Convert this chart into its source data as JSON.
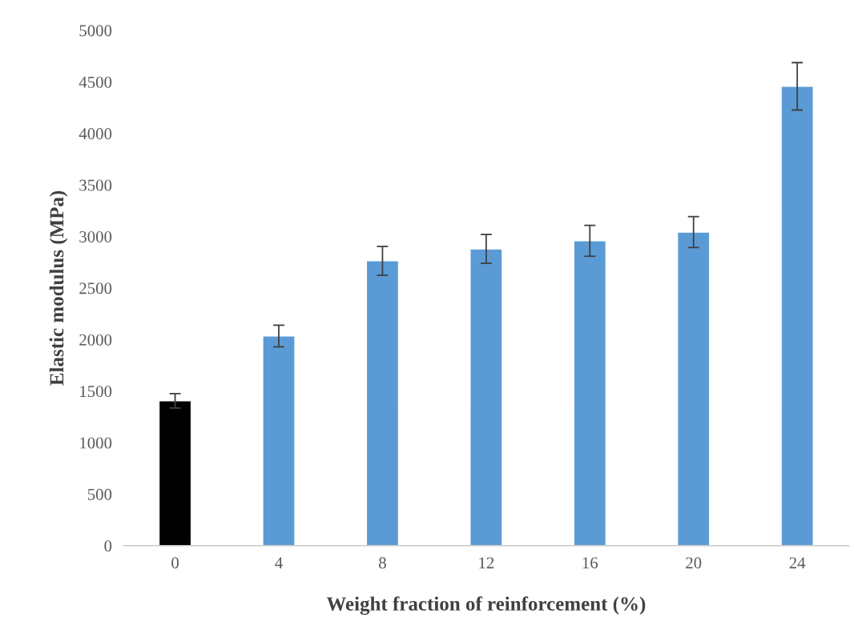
{
  "chart_data": {
    "type": "bar",
    "xlabel": "Weight fraction of reinforcement (%)",
    "ylabel": "Elastic modulus (MPa)",
    "categories": [
      "0",
      "4",
      "8",
      "12",
      "16",
      "20",
      "24"
    ],
    "values": [
      1405,
      2034,
      2764,
      2880,
      2958,
      3043,
      4457
    ],
    "errors": [
      70,
      105,
      140,
      140,
      150,
      150,
      230
    ],
    "colors": [
      "#000000",
      "#5b9bd5",
      "#5b9bd5",
      "#5b9bd5",
      "#5b9bd5",
      "#5b9bd5",
      "#5b9bd5"
    ],
    "ylim": [
      0,
      5000
    ],
    "yticks": [
      0,
      500,
      1000,
      1500,
      2000,
      2500,
      3000,
      3500,
      4000,
      4500,
      5000
    ],
    "grid": false
  }
}
